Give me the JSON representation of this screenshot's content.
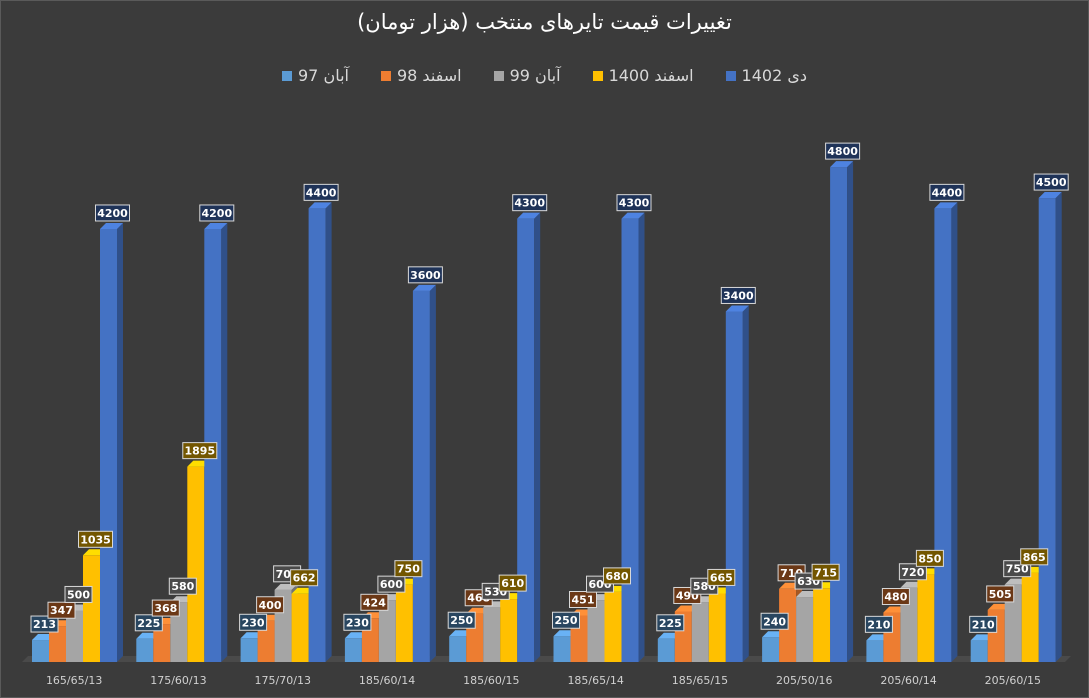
{
  "chart_data": {
    "type": "bar",
    "title": "تغییرات قیمت تایرهای منتخب (هزار تومان)",
    "categories": [
      "165/65/13",
      "175/60/13",
      "175/70/13",
      "185/60/14",
      "185/60/15",
      "185/65/14",
      "185/65/15",
      "205/50/16",
      "205/60/14",
      "205/60/15"
    ],
    "series": [
      {
        "name": "آبان 97",
        "color": "#5b9bd5",
        "values": [
          213,
          225,
          230,
          230,
          250,
          250,
          225,
          240,
          210,
          210
        ]
      },
      {
        "name": "اسفند 98",
        "color": "#ed7d31",
        "values": [
          347,
          368,
          400,
          424,
          468,
          451,
          490,
          710,
          480,
          505
        ]
      },
      {
        "name": "آبان 99",
        "color": "#a5a5a5",
        "values": [
          500,
          580,
          700,
          600,
          530,
          600,
          580,
          630,
          720,
          750
        ]
      },
      {
        "name": "اسفند 1400",
        "color": "#ffc000",
        "values": [
          1035,
          1895,
          662,
          750,
          610,
          680,
          665,
          715,
          850,
          865
        ]
      },
      {
        "name": "دی 1402",
        "color": "#4472c4",
        "values": [
          4200,
          4200,
          4400,
          3600,
          4300,
          4300,
          3400,
          4800,
          4400,
          4500
        ]
      }
    ],
    "ylim": [
      0,
      5000
    ],
    "grid": false,
    "legend_position": "top",
    "style": "3d-column"
  }
}
